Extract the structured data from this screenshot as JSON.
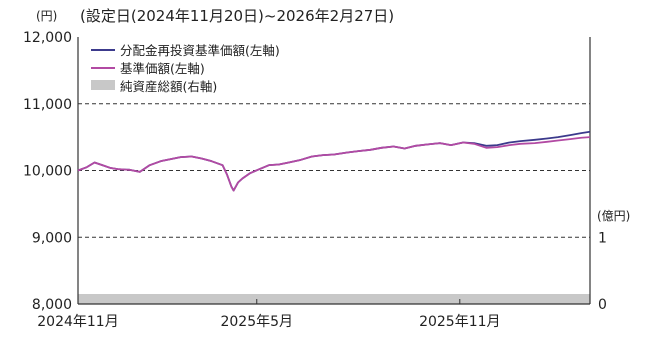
{
  "chart_data": {
    "type": "line",
    "title": "(設定日(2024年11月20日)~2026年2月27日)",
    "y_unit_left": "(円)",
    "y_unit_right": "(億円)",
    "ylim_left": [
      8000,
      12000
    ],
    "ylim_right": [
      0,
      4
    ],
    "yticks_left": [
      "12,000",
      "11,000",
      "10,000",
      "9,000",
      "8,000"
    ],
    "yticks_left_values": [
      12000,
      11000,
      10000,
      9000,
      8000
    ],
    "yticks_right": [
      "1",
      "0"
    ],
    "yticks_right_values": [
      1,
      0
    ],
    "xticks": [
      "2024年11月",
      "2025年5月",
      "2025年11月"
    ],
    "xticks_dates": [
      "2024-11-01",
      "2025-05-01",
      "2025-11-01"
    ],
    "x_range": [
      "2024-11-20",
      "2026-02-27"
    ],
    "grid": "dashed horizontal",
    "legend": "top-left",
    "series": [
      {
        "name": "分配金再投資基準価額(左軸)",
        "axis": "left",
        "color": "#3c3a8c",
        "x": [
          "2024-11-20",
          "2024-11-28",
          "2024-12-05",
          "2024-12-12",
          "2024-12-19",
          "2024-12-26",
          "2025-01-06",
          "2025-01-15",
          "2025-01-24",
          "2025-02-03",
          "2025-02-12",
          "2025-02-21",
          "2025-03-03",
          "2025-03-12",
          "2025-03-21",
          "2025-03-31",
          "2025-04-04",
          "2025-04-08",
          "2025-04-10",
          "2025-04-14",
          "2025-04-18",
          "2025-04-25",
          "2025-05-02",
          "2025-05-12",
          "2025-05-21",
          "2025-05-30",
          "2025-06-10",
          "2025-06-20",
          "2025-06-30",
          "2025-07-10",
          "2025-07-22",
          "2025-08-01",
          "2025-08-12",
          "2025-08-22",
          "2025-09-02",
          "2025-09-12",
          "2025-09-22",
          "2025-10-02",
          "2025-10-14",
          "2025-10-24",
          "2025-11-04",
          "2025-11-14",
          "2025-11-25",
          "2025-12-05",
          "2025-12-16",
          "2025-12-26",
          "2026-01-08",
          "2026-01-19",
          "2026-01-29",
          "2026-02-09",
          "2026-02-19",
          "2026-02-27"
        ],
        "values": [
          10000,
          10050,
          10120,
          10080,
          10040,
          10020,
          10010,
          9980,
          10080,
          10140,
          10170,
          10200,
          10210,
          10180,
          10140,
          10080,
          9940,
          9760,
          9700,
          9820,
          9880,
          9960,
          10010,
          10080,
          10090,
          10120,
          10160,
          10210,
          10230,
          10240,
          10270,
          10290,
          10310,
          10340,
          10360,
          10330,
          10370,
          10390,
          10410,
          10380,
          10420,
          10410,
          10370,
          10380,
          10420,
          10440,
          10460,
          10480,
          10500,
          10530,
          10560,
          10580
        ]
      },
      {
        "name": "基準価額(左軸)",
        "axis": "left",
        "color": "#b24aa3",
        "x": [
          "2024-11-20",
          "2024-11-28",
          "2024-12-05",
          "2024-12-12",
          "2024-12-19",
          "2024-12-26",
          "2025-01-06",
          "2025-01-15",
          "2025-01-24",
          "2025-02-03",
          "2025-02-12",
          "2025-02-21",
          "2025-03-03",
          "2025-03-12",
          "2025-03-21",
          "2025-03-31",
          "2025-04-04",
          "2025-04-08",
          "2025-04-10",
          "2025-04-14",
          "2025-04-18",
          "2025-04-25",
          "2025-05-02",
          "2025-05-12",
          "2025-05-21",
          "2025-05-30",
          "2025-06-10",
          "2025-06-20",
          "2025-06-30",
          "2025-07-10",
          "2025-07-22",
          "2025-08-01",
          "2025-08-12",
          "2025-08-22",
          "2025-09-02",
          "2025-09-12",
          "2025-09-22",
          "2025-10-02",
          "2025-10-14",
          "2025-10-24",
          "2025-11-04",
          "2025-11-14",
          "2025-11-25",
          "2025-12-05",
          "2025-12-16",
          "2025-12-26",
          "2026-01-08",
          "2026-01-19",
          "2026-01-29",
          "2026-02-09",
          "2026-02-19",
          "2026-02-27"
        ],
        "values": [
          10000,
          10050,
          10120,
          10080,
          10040,
          10020,
          10010,
          9980,
          10080,
          10140,
          10170,
          10200,
          10210,
          10180,
          10140,
          10080,
          9940,
          9760,
          9700,
          9820,
          9880,
          9960,
          10010,
          10080,
          10090,
          10120,
          10160,
          10210,
          10230,
          10240,
          10270,
          10290,
          10310,
          10340,
          10360,
          10330,
          10370,
          10390,
          10410,
          10380,
          10420,
          10400,
          10340,
          10350,
          10380,
          10400,
          10410,
          10430,
          10450,
          10470,
          10490,
          10500
        ]
      },
      {
        "name": "純資産総額(右軸)",
        "axis": "right",
        "color": "#c8c8c8",
        "type": "area",
        "x": [
          "2024-11-20",
          "2025-05-01",
          "2025-11-01",
          "2026-02-27"
        ],
        "values": [
          0.15,
          0.15,
          0.15,
          0.15
        ]
      }
    ]
  }
}
